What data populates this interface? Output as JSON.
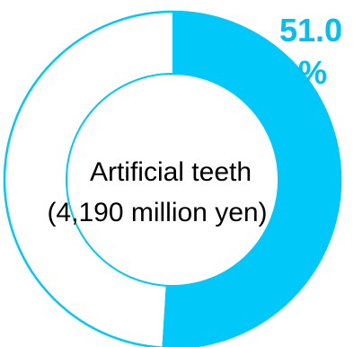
{
  "chart_data": {
    "type": "pie",
    "variant": "donut",
    "center_label": {
      "line1": "Artificial teeth",
      "line2": "(4,190 million yen)"
    },
    "slices": [
      {
        "value": 51.0,
        "color": "#00c8f8"
      },
      {
        "value": 49.0,
        "color": "#ffffff"
      }
    ],
    "data_label": {
      "value_text": "51.0",
      "unit_text": "%"
    },
    "outline_color": "#00c8f8",
    "label_color": "#00bff2"
  }
}
